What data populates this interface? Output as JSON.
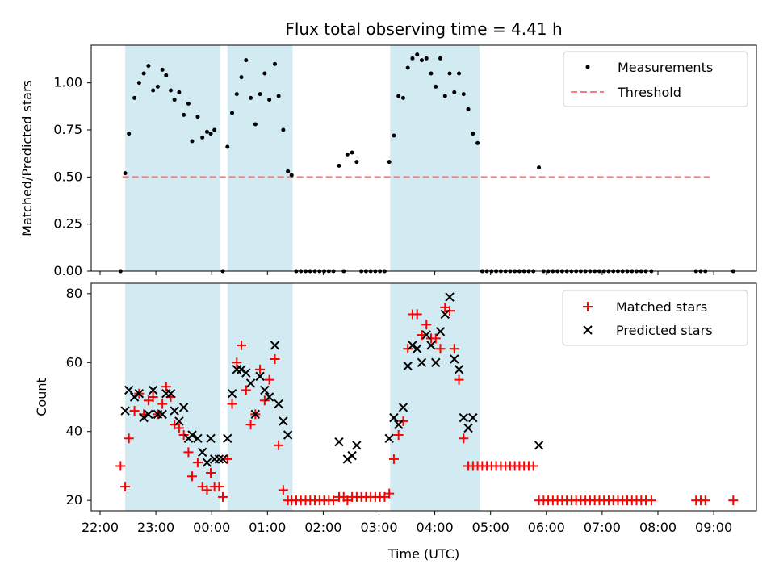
{
  "chart_data": {
    "title": "Flux total observing time = 4.41 h",
    "xlabel": "Time (UTC)",
    "x_ticks": [
      "22:00",
      "23:00",
      "00:00",
      "01:00",
      "02:00",
      "03:00",
      "04:00",
      "05:00",
      "06:00",
      "07:00",
      "08:00",
      "09:00"
    ],
    "shaded_intervals": [
      [
        "22:27",
        "00:09"
      ],
      [
        "00:17",
        "01:27"
      ],
      [
        "03:12",
        "04:48"
      ]
    ],
    "colors": {
      "shade": "#add8e6",
      "threshold": "#f08080",
      "matched": "#ff0000",
      "predicted": "#000000",
      "measurement": "#000000"
    },
    "top": {
      "type": "scatter",
      "ylabel": "Matched/Predicted stars",
      "ylim": [
        0,
        1.2
      ],
      "y_ticks": [
        "0.00",
        "0.25",
        "0.50",
        "0.75",
        "1.00"
      ],
      "legend": {
        "placement": "upper right",
        "entries": [
          "Measurements",
          "Threshold"
        ]
      },
      "threshold": {
        "value": 0.5,
        "x_range": [
          "22:24",
          "08:56"
        ]
      },
      "measurements": [
        [
          "22:22",
          0.0
        ],
        [
          "22:27",
          0.52
        ],
        [
          "22:31",
          0.73
        ],
        [
          "22:37",
          0.92
        ],
        [
          "22:42",
          1.0
        ],
        [
          "22:47",
          1.05
        ],
        [
          "22:52",
          1.09
        ],
        [
          "22:57",
          0.96
        ],
        [
          "23:02",
          0.98
        ],
        [
          "23:07",
          1.07
        ],
        [
          "23:11",
          1.04
        ],
        [
          "23:16",
          0.96
        ],
        [
          "23:20",
          0.91
        ],
        [
          "23:25",
          0.95
        ],
        [
          "23:30",
          0.83
        ],
        [
          "23:35",
          0.89
        ],
        [
          "23:39",
          0.69
        ],
        [
          "23:45",
          0.82
        ],
        [
          "23:50",
          0.71
        ],
        [
          "23:55",
          0.74
        ],
        [
          "23:59",
          0.73
        ],
        [
          "00:03",
          0.75
        ],
        [
          "00:12",
          0.0
        ],
        [
          "00:17",
          0.66
        ],
        [
          "00:22",
          0.84
        ],
        [
          "00:27",
          0.94
        ],
        [
          "00:32",
          1.03
        ],
        [
          "00:37",
          1.12
        ],
        [
          "00:42",
          0.92
        ],
        [
          "00:47",
          0.78
        ],
        [
          "00:52",
          0.94
        ],
        [
          "00:57",
          1.05
        ],
        [
          "01:02",
          0.91
        ],
        [
          "01:08",
          1.1
        ],
        [
          "01:12",
          0.93
        ],
        [
          "01:17",
          0.75
        ],
        [
          "01:22",
          0.53
        ],
        [
          "01:26",
          0.51
        ],
        [
          "01:31",
          0.0
        ],
        [
          "01:36",
          0.0
        ],
        [
          "01:41",
          0.0
        ],
        [
          "01:46",
          0.0
        ],
        [
          "01:51",
          0.0
        ],
        [
          "01:56",
          0.0
        ],
        [
          "02:01",
          0.0
        ],
        [
          "02:06",
          0.0
        ],
        [
          "02:11",
          0.0
        ],
        [
          "02:17",
          0.56
        ],
        [
          "02:22",
          0.0
        ],
        [
          "02:26",
          0.62
        ],
        [
          "02:31",
          0.63
        ],
        [
          "02:36",
          0.58
        ],
        [
          "02:41",
          0.0
        ],
        [
          "02:46",
          0.0
        ],
        [
          "02:51",
          0.0
        ],
        [
          "02:56",
          0.0
        ],
        [
          "03:01",
          0.0
        ],
        [
          "03:06",
          0.0
        ],
        [
          "03:11",
          0.58
        ],
        [
          "03:16",
          0.72
        ],
        [
          "03:21",
          0.93
        ],
        [
          "03:26",
          0.92
        ],
        [
          "03:31",
          1.08
        ],
        [
          "03:36",
          1.13
        ],
        [
          "03:41",
          1.15
        ],
        [
          "03:46",
          1.12
        ],
        [
          "03:51",
          1.13
        ],
        [
          "03:56",
          1.05
        ],
        [
          "04:01",
          0.98
        ],
        [
          "04:06",
          1.13
        ],
        [
          "04:11",
          0.93
        ],
        [
          "04:16",
          1.05
        ],
        [
          "04:21",
          0.95
        ],
        [
          "04:26",
          1.05
        ],
        [
          "04:31",
          0.94
        ],
        [
          "04:36",
          0.86
        ],
        [
          "04:41",
          0.73
        ],
        [
          "04:46",
          0.68
        ],
        [
          "04:51",
          0.0
        ],
        [
          "04:56",
          0.0
        ],
        [
          "05:01",
          0.0
        ],
        [
          "05:06",
          0.0
        ],
        [
          "05:11",
          0.0
        ],
        [
          "05:16",
          0.0
        ],
        [
          "05:21",
          0.0
        ],
        [
          "05:26",
          0.0
        ],
        [
          "05:31",
          0.0
        ],
        [
          "05:36",
          0.0
        ],
        [
          "05:41",
          0.0
        ],
        [
          "05:46",
          0.0
        ],
        [
          "05:52",
          0.55
        ],
        [
          "05:57",
          0.0
        ],
        [
          "06:02",
          0.0
        ],
        [
          "06:07",
          0.0
        ],
        [
          "06:12",
          0.0
        ],
        [
          "06:17",
          0.0
        ],
        [
          "06:22",
          0.0
        ],
        [
          "06:27",
          0.0
        ],
        [
          "06:32",
          0.0
        ],
        [
          "06:37",
          0.0
        ],
        [
          "06:42",
          0.0
        ],
        [
          "06:47",
          0.0
        ],
        [
          "06:52",
          0.0
        ],
        [
          "06:57",
          0.0
        ],
        [
          "07:02",
          0.0
        ],
        [
          "07:07",
          0.0
        ],
        [
          "07:12",
          0.0
        ],
        [
          "07:17",
          0.0
        ],
        [
          "07:22",
          0.0
        ],
        [
          "07:27",
          0.0
        ],
        [
          "07:32",
          0.0
        ],
        [
          "07:37",
          0.0
        ],
        [
          "07:42",
          0.0
        ],
        [
          "07:47",
          0.0
        ],
        [
          "07:53",
          0.0
        ],
        [
          "08:41",
          0.0
        ],
        [
          "08:46",
          0.0
        ],
        [
          "08:51",
          0.0
        ],
        [
          "09:21",
          0.0
        ]
      ]
    },
    "bottom": {
      "type": "scatter",
      "ylabel": "Count",
      "ylim": [
        17,
        83
      ],
      "y_ticks": [
        "20",
        "40",
        "60",
        "80"
      ],
      "legend": {
        "placement": "upper right",
        "entries": [
          "Matched stars",
          "Predicted stars"
        ]
      },
      "matched": [
        [
          "22:22",
          30
        ],
        [
          "22:27",
          24
        ],
        [
          "22:31",
          38
        ],
        [
          "22:37",
          46
        ],
        [
          "22:42",
          51
        ],
        [
          "22:47",
          45
        ],
        [
          "22:52",
          49
        ],
        [
          "22:57",
          50
        ],
        [
          "23:02",
          45
        ],
        [
          "23:07",
          48
        ],
        [
          "23:11",
          53
        ],
        [
          "23:16",
          50
        ],
        [
          "23:20",
          42
        ],
        [
          "23:25",
          41
        ],
        [
          "23:30",
          39
        ],
        [
          "23:35",
          34
        ],
        [
          "23:39",
          27
        ],
        [
          "23:45",
          31
        ],
        [
          "23:50",
          24
        ],
        [
          "23:55",
          23
        ],
        [
          "23:59",
          28
        ],
        [
          "00:03",
          24
        ],
        [
          "00:08",
          24
        ],
        [
          "00:12",
          21
        ],
        [
          "00:17",
          32
        ],
        [
          "00:22",
          48
        ],
        [
          "00:27",
          60
        ],
        [
          "00:32",
          65
        ],
        [
          "00:37",
          52
        ],
        [
          "00:42",
          42
        ],
        [
          "00:47",
          45
        ],
        [
          "00:52",
          58
        ],
        [
          "00:57",
          49
        ],
        [
          "01:02",
          55
        ],
        [
          "01:08",
          61
        ],
        [
          "01:12",
          36
        ],
        [
          "01:17",
          23
        ],
        [
          "01:22",
          20
        ],
        [
          "01:26",
          20
        ],
        [
          "01:31",
          20
        ],
        [
          "01:36",
          20
        ],
        [
          "01:41",
          20
        ],
        [
          "01:46",
          20
        ],
        [
          "01:51",
          20
        ],
        [
          "01:56",
          20
        ],
        [
          "02:01",
          20
        ],
        [
          "02:06",
          20
        ],
        [
          "02:11",
          20
        ],
        [
          "02:17",
          21
        ],
        [
          "02:22",
          21
        ],
        [
          "02:26",
          20
        ],
        [
          "02:31",
          21
        ],
        [
          "02:36",
          21
        ],
        [
          "02:41",
          21
        ],
        [
          "02:46",
          21
        ],
        [
          "02:51",
          21
        ],
        [
          "02:56",
          21
        ],
        [
          "03:01",
          21
        ],
        [
          "03:06",
          21
        ],
        [
          "03:11",
          22
        ],
        [
          "03:16",
          32
        ],
        [
          "03:21",
          39
        ],
        [
          "03:26",
          43
        ],
        [
          "03:31",
          64
        ],
        [
          "03:36",
          74
        ],
        [
          "03:41",
          74
        ],
        [
          "03:46",
          68
        ],
        [
          "03:51",
          71
        ],
        [
          "03:56",
          67
        ],
        [
          "04:01",
          67
        ],
        [
          "04:06",
          64
        ],
        [
          "04:11",
          76
        ],
        [
          "04:16",
          75
        ],
        [
          "04:21",
          64
        ],
        [
          "04:26",
          55
        ],
        [
          "04:31",
          38
        ],
        [
          "04:36",
          30
        ],
        [
          "04:41",
          30
        ],
        [
          "04:46",
          30
        ],
        [
          "04:51",
          30
        ],
        [
          "04:56",
          30
        ],
        [
          "05:01",
          30
        ],
        [
          "05:06",
          30
        ],
        [
          "05:11",
          30
        ],
        [
          "05:16",
          30
        ],
        [
          "05:21",
          30
        ],
        [
          "05:26",
          30
        ],
        [
          "05:31",
          30
        ],
        [
          "05:36",
          30
        ],
        [
          "05:41",
          30
        ],
        [
          "05:46",
          30
        ],
        [
          "05:52",
          20
        ],
        [
          "05:57",
          20
        ],
        [
          "06:02",
          20
        ],
        [
          "06:07",
          20
        ],
        [
          "06:12",
          20
        ],
        [
          "06:17",
          20
        ],
        [
          "06:22",
          20
        ],
        [
          "06:27",
          20
        ],
        [
          "06:32",
          20
        ],
        [
          "06:37",
          20
        ],
        [
          "06:42",
          20
        ],
        [
          "06:47",
          20
        ],
        [
          "06:52",
          20
        ],
        [
          "06:57",
          20
        ],
        [
          "07:02",
          20
        ],
        [
          "07:07",
          20
        ],
        [
          "07:12",
          20
        ],
        [
          "07:17",
          20
        ],
        [
          "07:22",
          20
        ],
        [
          "07:27",
          20
        ],
        [
          "07:32",
          20
        ],
        [
          "07:37",
          20
        ],
        [
          "07:42",
          20
        ],
        [
          "07:47",
          20
        ],
        [
          "07:53",
          20
        ],
        [
          "08:41",
          20
        ],
        [
          "08:46",
          20
        ],
        [
          "08:51",
          20
        ],
        [
          "09:21",
          20
        ]
      ],
      "predicted": [
        [
          "22:27",
          46
        ],
        [
          "22:31",
          52
        ],
        [
          "22:37",
          50
        ],
        [
          "22:42",
          51
        ],
        [
          "22:47",
          44
        ],
        [
          "22:52",
          45
        ],
        [
          "22:57",
          52
        ],
        [
          "23:02",
          45
        ],
        [
          "23:07",
          45
        ],
        [
          "23:11",
          51
        ],
        [
          "23:16",
          51
        ],
        [
          "23:20",
          46
        ],
        [
          "23:25",
          43
        ],
        [
          "23:30",
          47
        ],
        [
          "23:35",
          38
        ],
        [
          "23:39",
          39
        ],
        [
          "23:45",
          38
        ],
        [
          "23:50",
          34
        ],
        [
          "23:55",
          31
        ],
        [
          "23:59",
          38
        ],
        [
          "00:03",
          32
        ],
        [
          "00:08",
          32
        ],
        [
          "00:12",
          32
        ],
        [
          "00:17",
          38
        ],
        [
          "00:22",
          51
        ],
        [
          "00:27",
          58
        ],
        [
          "00:32",
          58
        ],
        [
          "00:37",
          57
        ],
        [
          "00:42",
          54
        ],
        [
          "00:47",
          45
        ],
        [
          "00:52",
          56
        ],
        [
          "00:57",
          52
        ],
        [
          "01:02",
          50
        ],
        [
          "01:08",
          65
        ],
        [
          "01:12",
          48
        ],
        [
          "01:17",
          43
        ],
        [
          "01:22",
          39
        ],
        [
          "02:17",
          37
        ],
        [
          "02:26",
          32
        ],
        [
          "02:31",
          33
        ],
        [
          "02:36",
          36
        ],
        [
          "03:11",
          38
        ],
        [
          "03:16",
          44
        ],
        [
          "03:21",
          42
        ],
        [
          "03:26",
          47
        ],
        [
          "03:31",
          59
        ],
        [
          "03:36",
          65
        ],
        [
          "03:41",
          64
        ],
        [
          "03:46",
          60
        ],
        [
          "03:51",
          68
        ],
        [
          "03:56",
          65
        ],
        [
          "04:01",
          60
        ],
        [
          "04:06",
          69
        ],
        [
          "04:11",
          74
        ],
        [
          "04:16",
          79
        ],
        [
          "04:21",
          61
        ],
        [
          "04:26",
          58
        ],
        [
          "04:31",
          44
        ],
        [
          "04:36",
          41
        ],
        [
          "04:41",
          44
        ],
        [
          "05:52",
          36
        ]
      ]
    }
  }
}
